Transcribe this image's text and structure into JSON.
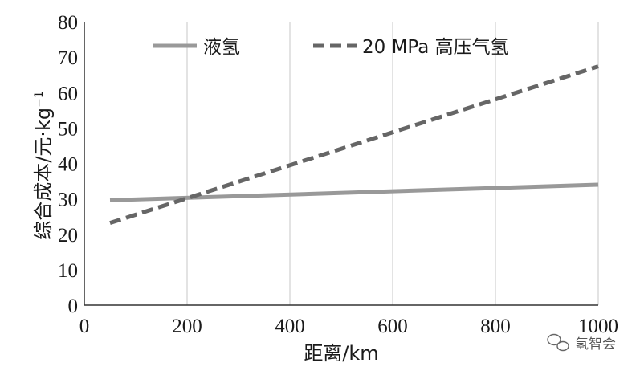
{
  "chart_data": {
    "type": "line",
    "x_ticks": [
      "0",
      "200",
      "400",
      "600",
      "800",
      "1000"
    ],
    "y_ticks": [
      "0",
      "10",
      "20",
      "30",
      "40",
      "50",
      "60",
      "70",
      "80"
    ],
    "xlim": [
      0,
      1000
    ],
    "ylim": [
      0,
      80
    ],
    "xlabel": "距离/km",
    "ylabel": "综合成本/元·kg",
    "ylabel_sup": "−1",
    "grid": "vertical",
    "legend_position": "top",
    "series": [
      {
        "name": "液氢",
        "style": "solid",
        "color": "#999999",
        "x": [
          50,
          1000
        ],
        "y": [
          29.6,
          34.0
        ]
      },
      {
        "name": "20 MPa 高压气氢",
        "style": "dashed",
        "color": "#666666",
        "x": [
          50,
          1000
        ],
        "y": [
          23.2,
          67.4
        ]
      }
    ]
  },
  "watermark": {
    "icon": "wechat-icon",
    "text": "氢智会"
  }
}
